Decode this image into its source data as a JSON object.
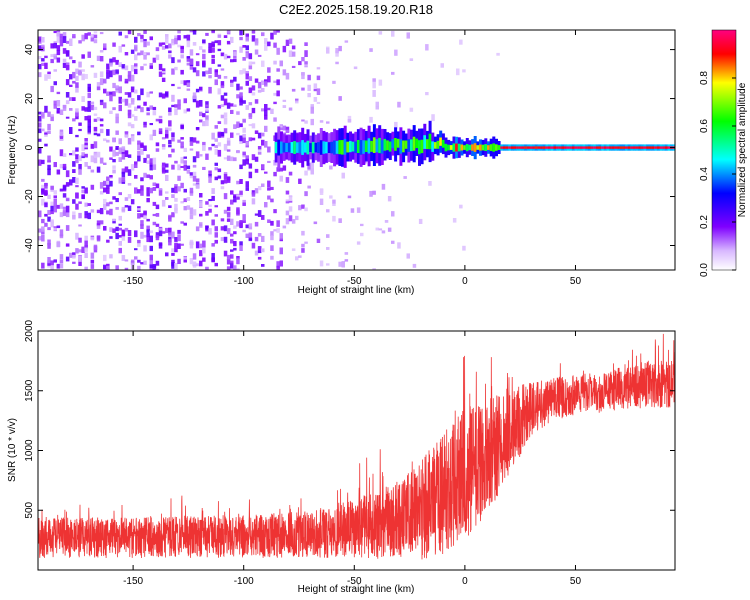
{
  "chart_data": [
    {
      "type": "heatmap",
      "title": "C2E2.2025.158.19.20.R18",
      "xlabel": "Height of straight line (km)",
      "ylabel": "Frequency (Hz)",
      "xlim": [
        -193,
        95
      ],
      "ylim": [
        -50,
        48
      ],
      "xticks": [
        -150,
        -100,
        -50,
        0,
        50
      ],
      "yticks": [
        -40,
        -20,
        0,
        20,
        40
      ],
      "grid": false,
      "colorbar": {
        "label": "Normalized spectral amplitude",
        "range": [
          0.0,
          1.0
        ],
        "ticks": [
          0.0,
          0.2,
          0.4,
          0.6,
          0.8
        ]
      },
      "features": {
        "signal_band_center_hz": 0,
        "noise_region_xlim": [
          -193,
          -60
        ],
        "strong_band_xlim": [
          -85,
          95
        ]
      }
    },
    {
      "type": "line",
      "xlabel": "Height of straight line (km)",
      "ylabel": "SNR (10 * v/v)",
      "xlim": [
        -193,
        95
      ],
      "ylim": [
        0,
        2000
      ],
      "xticks": [
        -150,
        -100,
        -50,
        0,
        50
      ],
      "yticks": [
        500,
        1000,
        1500,
        2000
      ],
      "grid": false,
      "series": [
        {
          "color": "#ee3333",
          "trend_x": [
            -193,
            -150,
            -100,
            -70,
            -50,
            -30,
            -20,
            -10,
            0,
            10,
            20,
            30,
            40,
            50,
            60,
            70,
            80,
            95
          ],
          "trend_y": [
            270,
            270,
            280,
            300,
            350,
            420,
            500,
            620,
            800,
            950,
            1150,
            1350,
            1430,
            1470,
            1480,
            1520,
            1550,
            1560
          ],
          "spread_y": [
            170,
            170,
            180,
            200,
            250,
            330,
            420,
            520,
            560,
            480,
            380,
            220,
            180,
            170,
            170,
            180,
            200,
            200
          ]
        }
      ]
    }
  ]
}
